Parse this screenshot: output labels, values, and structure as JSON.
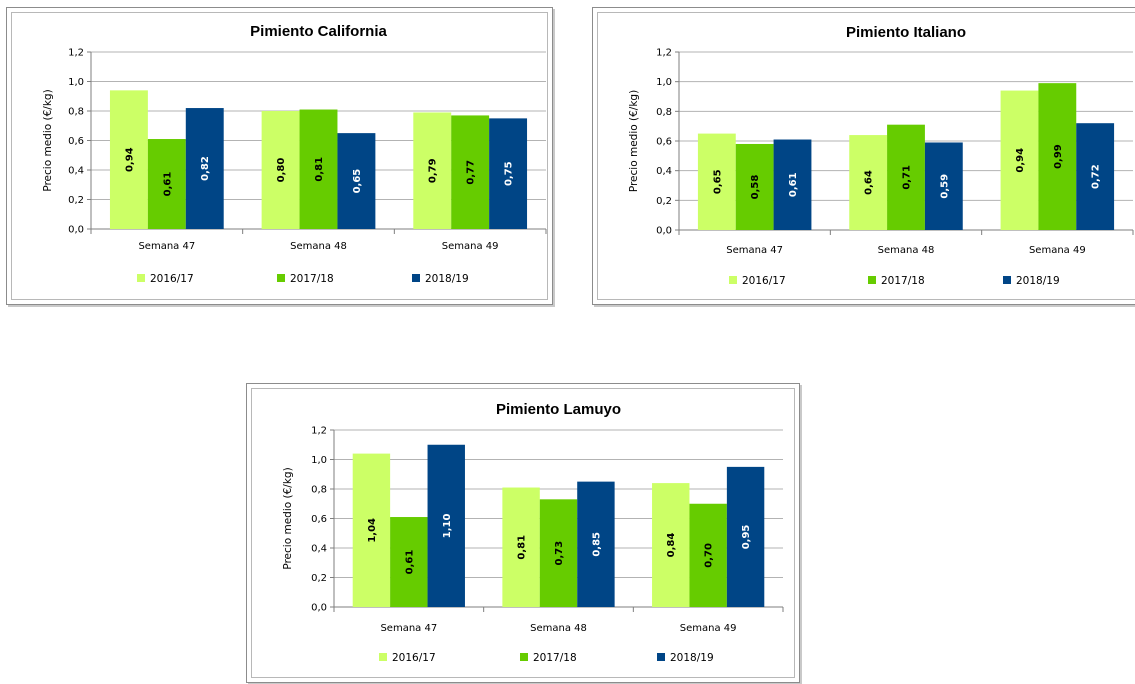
{
  "chart_data": [
    {
      "type": "bar",
      "title": "Pimiento California",
      "ylabel": "Precio medio (€/kg)",
      "xlabel": "",
      "ylim": [
        0,
        1.2
      ],
      "yticks": [
        "0,0",
        "0,2",
        "0,4",
        "0,6",
        "0,8",
        "1,0",
        "1,2"
      ],
      "categories": [
        "Semana 47",
        "Semana 48",
        "Semana 49"
      ],
      "legend_position": "bottom",
      "series": [
        {
          "name": "2016/17",
          "color": "#ccff66",
          "values": [
            0.94,
            0.8,
            0.79
          ],
          "labels": [
            "0,94",
            "0,80",
            "0,79"
          ]
        },
        {
          "name": "2017/18",
          "color": "#66cc00",
          "values": [
            0.61,
            0.81,
            0.77
          ],
          "labels": [
            "0,61",
            "0,81",
            "0,77"
          ]
        },
        {
          "name": "2018/19",
          "color": "#004586",
          "values": [
            0.82,
            0.65,
            0.75
          ],
          "labels": [
            "0,82",
            "0,65",
            "0,75"
          ]
        }
      ]
    },
    {
      "type": "bar",
      "title": "Pimiento Italiano",
      "ylabel": "Precio medio (€/kg)",
      "xlabel": "",
      "ylim": [
        0,
        1.2
      ],
      "yticks": [
        "0,0",
        "0,2",
        "0,4",
        "0,6",
        "0,8",
        "1,0",
        "1,2"
      ],
      "categories": [
        "Semana 47",
        "Semana 48",
        "Semana 49"
      ],
      "legend_position": "bottom",
      "series": [
        {
          "name": "2016/17",
          "color": "#ccff66",
          "values": [
            0.65,
            0.64,
            0.94
          ],
          "labels": [
            "0,65",
            "0,64",
            "0,94"
          ]
        },
        {
          "name": "2017/18",
          "color": "#66cc00",
          "values": [
            0.58,
            0.71,
            0.99
          ],
          "labels": [
            "0,58",
            "0,71",
            "0,99"
          ]
        },
        {
          "name": "2018/19",
          "color": "#004586",
          "values": [
            0.61,
            0.59,
            0.72
          ],
          "labels": [
            "0,61",
            "0,59",
            "0,72"
          ]
        }
      ]
    },
    {
      "type": "bar",
      "title": "Pimiento Lamuyo",
      "ylabel": "Precio medio (€/kg)",
      "xlabel": "",
      "ylim": [
        0,
        1.2
      ],
      "yticks": [
        "0,0",
        "0,2",
        "0,4",
        "0,6",
        "0,8",
        "1,0",
        "1,2"
      ],
      "categories": [
        "Semana 47",
        "Semana 48",
        "Semana 49"
      ],
      "legend_position": "bottom",
      "series": [
        {
          "name": "2016/17",
          "color": "#ccff66",
          "values": [
            1.04,
            0.81,
            0.84
          ],
          "labels": [
            "1,04",
            "0,81",
            "0,84"
          ]
        },
        {
          "name": "2017/18",
          "color": "#66cc00",
          "values": [
            0.61,
            0.73,
            0.7
          ],
          "labels": [
            "0,61",
            "0,73",
            "0,70"
          ]
        },
        {
          "name": "2018/19",
          "color": "#004586",
          "values": [
            1.1,
            0.85,
            0.95
          ],
          "labels": [
            "1,10",
            "0,85",
            "0,95"
          ]
        }
      ]
    }
  ]
}
